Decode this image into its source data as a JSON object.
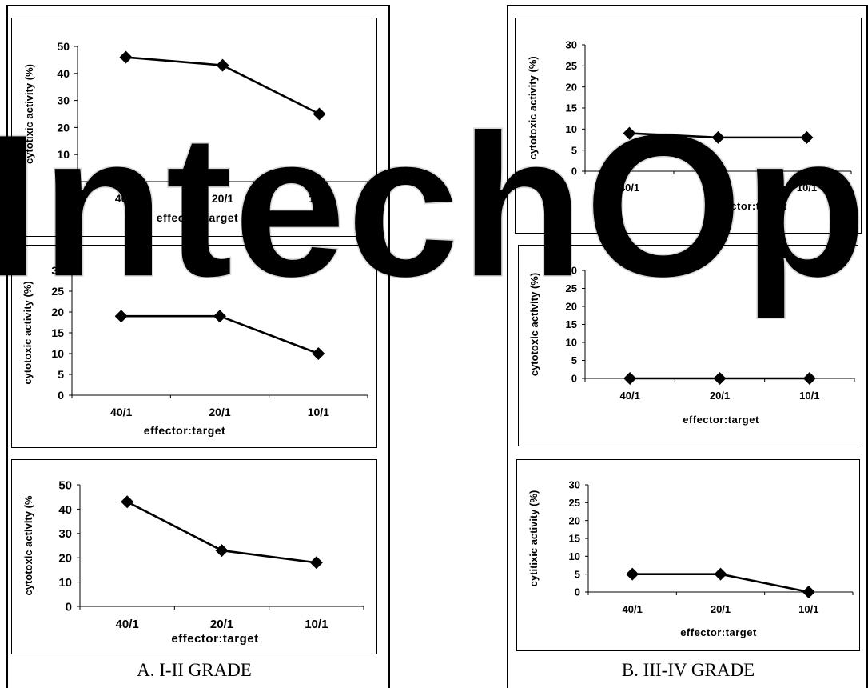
{
  "captions": {
    "left": "A. I-II GRADE",
    "right": "B. III-IV GRADE"
  },
  "watermark_text": "IntechOpen",
  "chart_data": [
    {
      "type": "line",
      "title": "",
      "categories": [
        "40/1",
        "20/1",
        "10/1"
      ],
      "series": [
        {
          "values": [
            46,
            43,
            25
          ]
        }
      ],
      "xlabel": "effector:target",
      "ylabel": "cytotixic activity (%)",
      "ylim": [
        0,
        50
      ],
      "yticks": [
        0,
        10,
        20,
        30,
        40,
        50
      ],
      "grid": false,
      "legend": "none"
    },
    {
      "type": "line",
      "title": "",
      "categories": [
        "40/1",
        "20/1",
        "10/1"
      ],
      "series": [
        {
          "values": [
            19,
            19,
            10
          ]
        }
      ],
      "xlabel": "effector:target",
      "ylabel": "cytotoxic activity (%)",
      "ylim": [
        0,
        30
      ],
      "yticks": [
        0,
        5,
        10,
        15,
        20,
        25,
        30
      ],
      "grid": false,
      "legend": "none"
    },
    {
      "type": "line",
      "title": "",
      "categories": [
        "40/1",
        "20/1",
        "10/1"
      ],
      "series": [
        {
          "values": [
            43,
            23,
            18
          ]
        }
      ],
      "xlabel": "effector:target",
      "ylabel": "cytotoxic activity (%",
      "ylim": [
        0,
        50
      ],
      "yticks": [
        0,
        10,
        20,
        30,
        40,
        50
      ],
      "grid": false,
      "legend": "none"
    },
    {
      "type": "line",
      "title": "",
      "categories": [
        "40/1",
        "20/1",
        "10/1"
      ],
      "series": [
        {
          "values": [
            9,
            8,
            8
          ]
        }
      ],
      "xlabel": "effector:target",
      "ylabel": "cytotoxic activity (%)",
      "ylim": [
        0,
        30
      ],
      "yticks": [
        0,
        5,
        10,
        15,
        20,
        25,
        30
      ],
      "grid": false,
      "legend": "none"
    },
    {
      "type": "line",
      "title": "",
      "categories": [
        "40/1",
        "20/1",
        "10/1"
      ],
      "series": [
        {
          "values": [
            0,
            0,
            0
          ]
        }
      ],
      "xlabel": "effector:target",
      "ylabel": "cytotoxic activity (%)",
      "ylim": [
        0,
        30
      ],
      "yticks": [
        0,
        5,
        10,
        15,
        20,
        25,
        30
      ],
      "grid": false,
      "legend": "none"
    },
    {
      "type": "line",
      "title": "",
      "categories": [
        "40/1",
        "20/1",
        "10/1"
      ],
      "series": [
        {
          "values": [
            5,
            5,
            0
          ]
        }
      ],
      "xlabel": "effector:target",
      "ylabel": "cytitixic activity (%)",
      "ylim": [
        0,
        30
      ],
      "yticks": [
        0,
        5,
        10,
        15,
        20,
        25,
        30
      ],
      "grid": false,
      "legend": "none"
    }
  ]
}
